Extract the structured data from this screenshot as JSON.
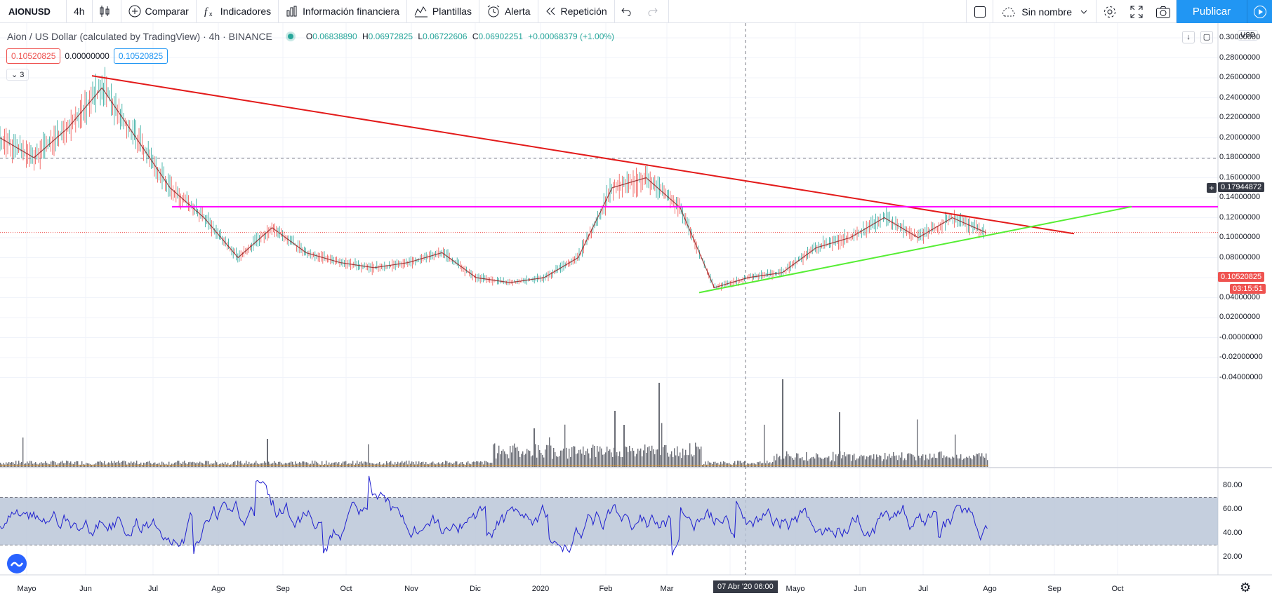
{
  "toolbar": {
    "symbol": "AIONUSD",
    "interval": "4h",
    "compare": "Comparar",
    "indicators": "Indicadores",
    "financials": "Información financiera",
    "templates": "Plantillas",
    "alert": "Alerta",
    "replay": "Repetición",
    "layout_name": "Sin nombre",
    "publish": "Publicar"
  },
  "legend": {
    "title": "Aion / US Dollar (calculated by TradingView) · 4h · BINANCE",
    "o_label": "O",
    "o": "0.06838890",
    "h_label": "H",
    "h": "0.06972825",
    "l_label": "L",
    "l": "0.06722606",
    "c_label": "C",
    "c": "0.06902251",
    "change": "+0.00068379 (+1.00%)"
  },
  "values": {
    "v1": "0.10520825",
    "v2": "0.00000000",
    "v3": "0.10520825"
  },
  "collapse_count": "3",
  "currency": "USD",
  "price_axis": [
    "0.30000000",
    "0.28000000",
    "0.26000000",
    "0.24000000",
    "0.22000000",
    "0.20000000",
    "0.18000000",
    "0.16000000",
    "0.14000000",
    "0.12000000",
    "0.10000000",
    "0.08000000",
    "0.06000000",
    "0.04000000",
    "0.02000000",
    "-0.00000000",
    "-0.02000000",
    "-0.04000000"
  ],
  "rsi_axis": [
    "80.00",
    "60.00",
    "40.00",
    "20.00"
  ],
  "price_tags": {
    "crosshair": "0.17944872",
    "last": "0.10520825",
    "countdown": "03:15:51"
  },
  "time_axis": [
    "Mayo",
    "Jun",
    "Jul",
    "Ago",
    "Sep",
    "Oct",
    "Nov",
    "Dic",
    "2020",
    "Feb",
    "Mar",
    "Abr",
    "Mayo",
    "Jun",
    "Jul",
    "Ago",
    "Sep",
    "Oct"
  ],
  "crosshair_time": "07 Abr '20   06:00",
  "colors": {
    "resistance": "#e31a1a",
    "horizontal": "#ff00ff",
    "support": "#55ee33",
    "rsi": "#1f1fcf",
    "rsi_band": "#b7c3d6",
    "up": "#26a69a",
    "down": "#ef5350",
    "accent": "#2196f3"
  },
  "chart_data": {
    "type": "candlestick",
    "symbol": "AIONUSD",
    "interval": "4h",
    "price_range": [
      -0.05,
      0.3
    ],
    "approx_close_path": [
      {
        "x": "Mayo",
        "y": 0.2
      },
      {
        "x": "Mayo",
        "y": 0.18
      },
      {
        "x": "Jun",
        "y": 0.21
      },
      {
        "x": "Jun",
        "y": 0.25
      },
      {
        "x": "Jun",
        "y": 0.2
      },
      {
        "x": "Jul",
        "y": 0.15
      },
      {
        "x": "Jul",
        "y": 0.12
      },
      {
        "x": "Jul",
        "y": 0.08
      },
      {
        "x": "Ago",
        "y": 0.11
      },
      {
        "x": "Ago",
        "y": 0.085
      },
      {
        "x": "Sep",
        "y": 0.075
      },
      {
        "x": "Oct",
        "y": 0.07
      },
      {
        "x": "Nov",
        "y": 0.075
      },
      {
        "x": "Nov",
        "y": 0.085
      },
      {
        "x": "Dic",
        "y": 0.06
      },
      {
        "x": "2020",
        "y": 0.055
      },
      {
        "x": "2020",
        "y": 0.06
      },
      {
        "x": "Feb",
        "y": 0.08
      },
      {
        "x": "Feb",
        "y": 0.15
      },
      {
        "x": "Mar",
        "y": 0.16
      },
      {
        "x": "Mar",
        "y": 0.13
      },
      {
        "x": "Mar",
        "y": 0.05
      },
      {
        "x": "Abr",
        "y": 0.06
      },
      {
        "x": "Abr",
        "y": 0.065
      },
      {
        "x": "Mayo",
        "y": 0.09
      },
      {
        "x": "Jun",
        "y": 0.1
      },
      {
        "x": "Jun",
        "y": 0.12
      },
      {
        "x": "Jul",
        "y": 0.1
      },
      {
        "x": "Jul",
        "y": 0.12
      },
      {
        "x": "Ago",
        "y": 0.105
      }
    ],
    "drawings": [
      {
        "name": "descending-trendline",
        "from": {
          "x": "Jun",
          "y": 0.262
        },
        "to": {
          "x": "Sep",
          "y": 0.103
        }
      },
      {
        "name": "horizontal-line",
        "from": {
          "x": "Jul",
          "y": 0.131
        },
        "to": {
          "x": "Oct",
          "y": 0.131
        }
      },
      {
        "name": "ascending-trendline",
        "from": {
          "x": "Mar",
          "y": 0.045
        },
        "to": {
          "x": "Oct",
          "y": 0.131
        }
      }
    ],
    "rsi": {
      "upper": 70,
      "lower": 30,
      "range": [
        10,
        90
      ]
    }
  }
}
